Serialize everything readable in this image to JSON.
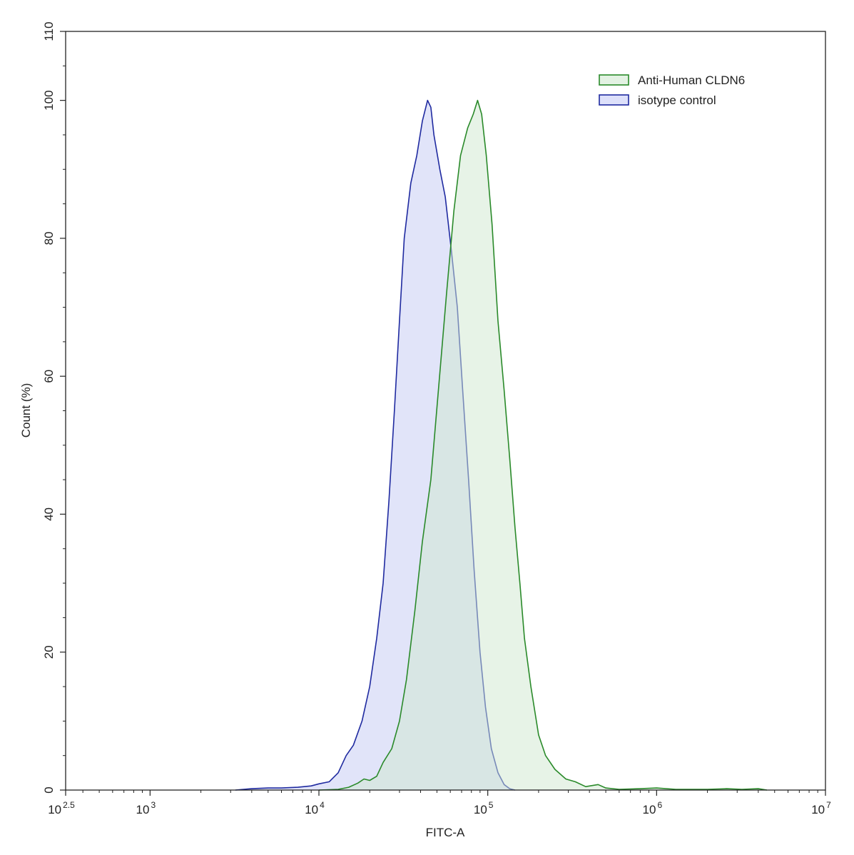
{
  "chart_data": {
    "type": "area",
    "xlabel": "FITC-A",
    "ylabel": "Count  (%)",
    "xscale": "log10",
    "xlim": [
      316.2,
      10000000
    ],
    "ylim": [
      0,
      110
    ],
    "grid": false,
    "legend_position": "top-right",
    "x_ticks": [
      {
        "value": 316.2,
        "base": "10",
        "exp": "2.5"
      },
      {
        "value": 1000,
        "base": "10",
        "exp": "3"
      },
      {
        "value": 10000,
        "base": "10",
        "exp": "4"
      },
      {
        "value": 100000,
        "base": "10",
        "exp": "5"
      },
      {
        "value": 1000000,
        "base": "10",
        "exp": "6"
      },
      {
        "value": 10000000,
        "base": "10",
        "exp": "7"
      }
    ],
    "y_ticks": [
      {
        "value": 0,
        "label": "0"
      },
      {
        "value": 20,
        "label": "20"
      },
      {
        "value": 40,
        "label": "40"
      },
      {
        "value": 60,
        "label": "60"
      },
      {
        "value": 80,
        "label": "80"
      },
      {
        "value": 100,
        "label": "100"
      },
      {
        "value": 110,
        "label": "110"
      }
    ],
    "series": [
      {
        "name": "isotype control",
        "line_color": "#1f2aa0",
        "fill_color": "#c8cdf4",
        "points": [
          [
            3200,
            0
          ],
          [
            4000,
            0.2
          ],
          [
            5000,
            0.3
          ],
          [
            6000,
            0.3
          ],
          [
            7500,
            0.4
          ],
          [
            9000,
            0.6
          ],
          [
            10000,
            0.9
          ],
          [
            11500,
            1.2
          ],
          [
            13000,
            2.5
          ],
          [
            14500,
            5
          ],
          [
            16000,
            6.5
          ],
          [
            18000,
            10
          ],
          [
            20000,
            15
          ],
          [
            22000,
            22
          ],
          [
            24000,
            30
          ],
          [
            26000,
            42
          ],
          [
            28000,
            55
          ],
          [
            30000,
            68
          ],
          [
            32000,
            80
          ],
          [
            35000,
            88
          ],
          [
            38000,
            92
          ],
          [
            41000,
            97
          ],
          [
            44000,
            100
          ],
          [
            46000,
            99
          ],
          [
            48000,
            95
          ],
          [
            52000,
            90
          ],
          [
            56000,
            86
          ],
          [
            61000,
            78
          ],
          [
            66000,
            70
          ],
          [
            71000,
            58
          ],
          [
            77000,
            45
          ],
          [
            83000,
            32
          ],
          [
            90000,
            20
          ],
          [
            97000,
            12
          ],
          [
            105000,
            6
          ],
          [
            115000,
            2.5
          ],
          [
            125000,
            0.8
          ],
          [
            135000,
            0.2
          ],
          [
            145000,
            0
          ]
        ]
      },
      {
        "name": "Anti-Human CLDN6",
        "line_color": "#2a8a2a",
        "fill_color": "#cfe7cf",
        "points": [
          [
            10000,
            0
          ],
          [
            13000,
            0.1
          ],
          [
            15000,
            0.4
          ],
          [
            17000,
            1
          ],
          [
            18500,
            1.6
          ],
          [
            20000,
            1.4
          ],
          [
            22000,
            2
          ],
          [
            24000,
            4
          ],
          [
            27000,
            6
          ],
          [
            30000,
            10
          ],
          [
            33000,
            16
          ],
          [
            37000,
            26
          ],
          [
            41000,
            36
          ],
          [
            46000,
            45
          ],
          [
            51000,
            58
          ],
          [
            57000,
            72
          ],
          [
            63000,
            84
          ],
          [
            69000,
            92
          ],
          [
            76000,
            96
          ],
          [
            82000,
            98
          ],
          [
            87000,
            100
          ],
          [
            92000,
            98
          ],
          [
            98000,
            92
          ],
          [
            106000,
            82
          ],
          [
            115000,
            68
          ],
          [
            125000,
            58
          ],
          [
            135000,
            48
          ],
          [
            145000,
            38
          ],
          [
            155000,
            30
          ],
          [
            165000,
            22
          ],
          [
            180000,
            15
          ],
          [
            200000,
            8
          ],
          [
            220000,
            5
          ],
          [
            250000,
            3
          ],
          [
            290000,
            1.6
          ],
          [
            330000,
            1.2
          ],
          [
            380000,
            0.5
          ],
          [
            450000,
            0.8
          ],
          [
            500000,
            0.3
          ],
          [
            600000,
            0.1
          ],
          [
            800000,
            0.2
          ],
          [
            1000000,
            0.3
          ],
          [
            1300000,
            0.1
          ],
          [
            2000000,
            0.1
          ],
          [
            2600000,
            0.2
          ],
          [
            3200000,
            0.1
          ],
          [
            4000000,
            0.2
          ],
          [
            4500000,
            0
          ]
        ]
      }
    ],
    "legend": [
      {
        "label": "Anti-Human CLDN6",
        "line_color": "#2a8a2a",
        "fill_color": "#e3f2e3"
      },
      {
        "label": "isotype control",
        "line_color": "#1f2aa0",
        "fill_color": "#dde0fa"
      }
    ]
  }
}
